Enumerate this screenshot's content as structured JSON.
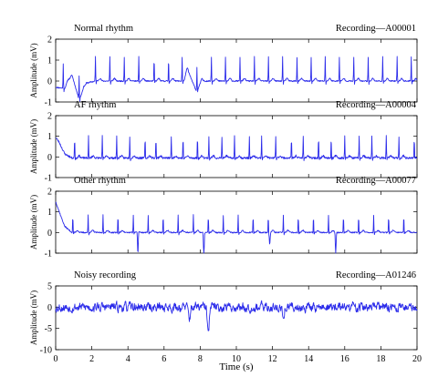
{
  "chart_data": {
    "type": "line",
    "xlabel": "Time (s)",
    "xlim": [
      0,
      20
    ],
    "xticks": [
      0,
      2,
      4,
      6,
      8,
      10,
      12,
      14,
      16,
      18,
      20
    ],
    "series_color": "#2b2bea",
    "panels": [
      {
        "label": "Normal rhythm",
        "recording": "Recording—A00001",
        "ylabel": "Amplitude (mV)",
        "ylim": [
          -1,
          2
        ],
        "yticks": [
          -1,
          0,
          1,
          2
        ],
        "seed": 11,
        "beats": [
          0.42,
          1.3,
          2.2,
          3.0,
          3.8,
          4.6,
          5.45,
          6.25,
          7.0,
          7.82,
          8.62,
          9.4,
          10.2,
          11.0,
          11.78,
          12.56,
          13.36,
          14.14,
          14.92,
          15.7,
          16.5,
          17.3,
          18.1,
          18.9,
          19.68
        ],
        "r_amp": 1.15,
        "s_amp": -0.15,
        "t_amp": 0.12,
        "noise": 0.03,
        "baseline": [
          {
            "t": 0.0,
            "v": -0.3
          },
          {
            "t": 0.5,
            "v": -0.35
          },
          {
            "t": 0.9,
            "v": 0.3
          },
          {
            "t": 1.3,
            "v": -0.9
          },
          {
            "t": 1.7,
            "v": -0.1
          },
          {
            "t": 2.2,
            "v": 0.0
          },
          {
            "t": 7.1,
            "v": 0.0
          },
          {
            "t": 7.3,
            "v": 0.55
          },
          {
            "t": 7.6,
            "v": -0.1
          },
          {
            "t": 7.8,
            "v": -0.5
          },
          {
            "t": 8.1,
            "v": 0.0
          },
          {
            "t": 20.0,
            "v": 0.0
          }
        ]
      },
      {
        "label": "AF rhythm",
        "recording": "Recording—A00004",
        "ylabel": "Amplitude (mV)",
        "ylim": [
          -1,
          2
        ],
        "yticks": [
          -1,
          0,
          1,
          2
        ],
        "seed": 23,
        "beats": [
          1.05,
          1.82,
          2.58,
          3.38,
          4.1,
          4.95,
          5.55,
          6.4,
          7.05,
          7.85,
          8.48,
          9.2,
          9.9,
          10.72,
          11.4,
          12.18,
          13.05,
          13.7,
          14.55,
          15.25,
          16.0,
          16.8,
          17.5,
          18.3,
          19.0,
          19.85
        ],
        "r_amp": 1.05,
        "s_amp": -0.1,
        "t_amp": 0.1,
        "noise": 0.05,
        "baseline": [
          {
            "t": 0.0,
            "v": 0.95
          },
          {
            "t": 0.2,
            "v": 0.7
          },
          {
            "t": 0.5,
            "v": 0.15
          },
          {
            "t": 0.9,
            "v": -0.05
          },
          {
            "t": 20.0,
            "v": -0.05
          }
        ]
      },
      {
        "label": "Other rhythm",
        "recording": "Recording—A00077",
        "ylabel": "Amplitude (mV)",
        "ylim": [
          -1,
          2
        ],
        "yticks": [
          -1,
          0,
          1,
          2
        ],
        "seed": 37,
        "beats": [
          0.95,
          1.8,
          2.62,
          3.45,
          4.3,
          5.12,
          5.95,
          6.78,
          7.62,
          8.45,
          9.28,
          10.1,
          10.93,
          11.77,
          12.6,
          13.43,
          14.27,
          15.1,
          15.93,
          16.77,
          17.6,
          18.43,
          19.27
        ],
        "r_amp": 0.85,
        "s_amp": -0.1,
        "t_amp": 0.1,
        "noise": 0.03,
        "ectopic": [
          {
            "t": 4.55,
            "v": -1.15
          },
          {
            "t": 8.2,
            "v": -1.25
          },
          {
            "t": 11.85,
            "v": -0.6
          },
          {
            "t": 15.5,
            "v": -1.1
          }
        ],
        "baseline": [
          {
            "t": 0.0,
            "v": 1.5
          },
          {
            "t": 0.2,
            "v": 1.0
          },
          {
            "t": 0.5,
            "v": 0.3
          },
          {
            "t": 0.9,
            "v": 0.0
          },
          {
            "t": 20.0,
            "v": 0.0
          }
        ]
      },
      {
        "label": "Noisy recording",
        "recording": "Recording—A01246",
        "ylabel": "Amplitude (mV)",
        "ylim": [
          -10,
          5
        ],
        "yticks": [
          -10,
          -5,
          0,
          5
        ],
        "seed": 53,
        "beats": [],
        "r_amp": 0,
        "s_amp": 0,
        "t_amp": 0,
        "noise": 1.6,
        "dips": [
          {
            "t": 7.4,
            "v": -2.8
          },
          {
            "t": 8.45,
            "v": -6.3
          },
          {
            "t": 12.6,
            "v": -3.0
          }
        ],
        "baseline": [
          {
            "t": 0.0,
            "v": 0.0
          },
          {
            "t": 20.0,
            "v": 0.0
          }
        ]
      }
    ]
  }
}
